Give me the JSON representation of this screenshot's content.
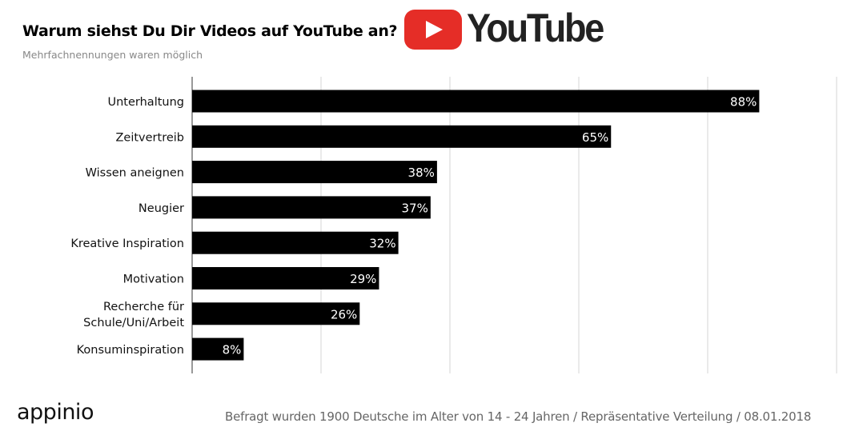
{
  "header": {
    "title": "Warum siehst Du Dir Videos auf YouTube an?",
    "subtitle": "Mehrfachnennungen waren möglich",
    "brand_logo_text": "YouTube",
    "brand_color": "#e52d27"
  },
  "chart_data": {
    "type": "bar",
    "orientation": "horizontal",
    "categories": [
      "Unterhaltung",
      "Zeitvertreib",
      "Wissen aneignen",
      "Neugier",
      "Kreative Inspiration",
      "Motivation",
      "Recherche für Schule/Uni/Arbeit",
      "Konsuminspiration"
    ],
    "category_lines": [
      [
        "Unterhaltung"
      ],
      [
        "Zeitvertreib"
      ],
      [
        "Wissen aneignen"
      ],
      [
        "Neugier"
      ],
      [
        "Kreative Inspiration"
      ],
      [
        "Motivation"
      ],
      [
        "Recherche für",
        "Schule/Uni/Arbeit"
      ],
      [
        "Konsuminspiration"
      ]
    ],
    "values": [
      88,
      65,
      38,
      37,
      32,
      29,
      26,
      8
    ],
    "data_labels": [
      "88%",
      "65%",
      "38%",
      "37%",
      "32%",
      "29%",
      "26%",
      "8%"
    ],
    "xlim": [
      0,
      100
    ],
    "gridlines": [
      0,
      20,
      40,
      60,
      80,
      100
    ],
    "grid": true,
    "legend": "none",
    "bar_color": "#000000"
  },
  "footer": {
    "logo_text": "appinio",
    "note": "Befragt wurden 1900 Deutsche im Alter von 14 - 24 Jahren /  Repräsentative Verteilung / 08.01.2018"
  }
}
